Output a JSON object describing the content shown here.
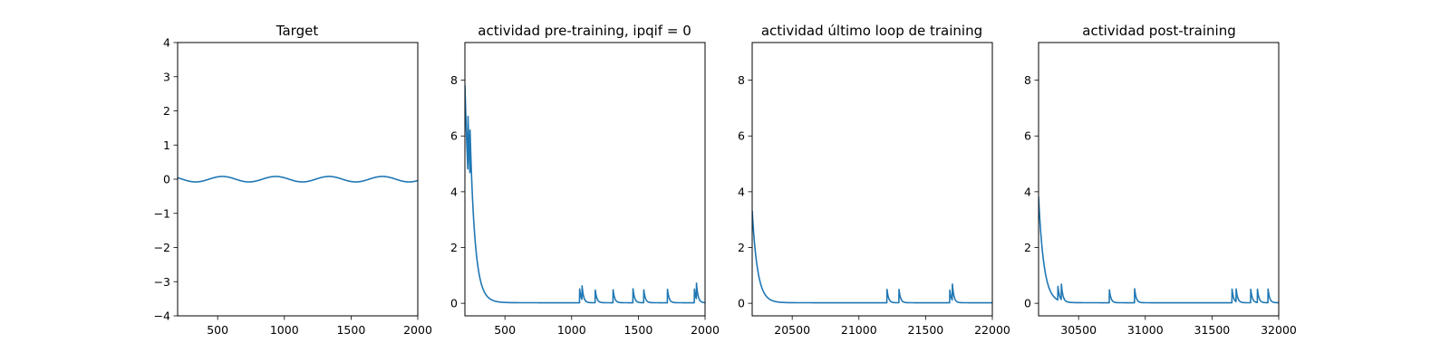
{
  "colors": {
    "series": "#1f77b4",
    "axes": "#000000",
    "background": "#ffffff"
  },
  "chart_data": [
    {
      "type": "line",
      "title": "Target",
      "xlabel": "",
      "ylabel": "",
      "xlim": [
        200,
        2000
      ],
      "ylim": [
        -4,
        4
      ],
      "xticks": [
        500,
        1000,
        1500,
        2000
      ],
      "yticks": [
        -4,
        -3,
        -2,
        -1,
        0,
        1,
        2,
        3,
        4
      ],
      "grid": false,
      "series": [
        {
          "sinusoid": {
            "amplitude": 0.08,
            "period": 400,
            "peak_at": 535
          }
        }
      ]
    },
    {
      "type": "line",
      "title": "actividad pre-training, ipqif = 0",
      "xlabel": "",
      "ylabel": "",
      "xlim": [
        200,
        2000
      ],
      "ylim": [
        -0.45,
        9.35
      ],
      "xticks": [
        500,
        1000,
        1500,
        2000
      ],
      "yticks": [
        0,
        2,
        4,
        6,
        8
      ],
      "grid": false,
      "series": [
        {
          "baseline": 0.02,
          "spikes": [
            {
              "x": 200,
              "height": 7.8,
              "decay": 45
            },
            {
              "x": 222,
              "height": 2.1,
              "decay": 30
            },
            {
              "x": 238,
              "height": 1.7,
              "decay": 30
            },
            {
              "x": 1060,
              "height": 0.5,
              "decay": 12
            },
            {
              "x": 1078,
              "height": 0.5,
              "decay": 12
            },
            {
              "x": 1176,
              "height": 0.5,
              "decay": 12
            },
            {
              "x": 1310,
              "height": 0.5,
              "decay": 12
            },
            {
              "x": 1460,
              "height": 0.5,
              "decay": 12
            },
            {
              "x": 1540,
              "height": 0.5,
              "decay": 12
            },
            {
              "x": 1718,
              "height": 0.5,
              "decay": 12
            },
            {
              "x": 1920,
              "height": 0.5,
              "decay": 12
            },
            {
              "x": 1935,
              "height": 0.6,
              "decay": 12
            }
          ]
        }
      ]
    },
    {
      "type": "line",
      "title": "actividad último loop de training",
      "xlabel": "",
      "ylabel": "",
      "xlim": [
        20200,
        22000
      ],
      "ylim": [
        -0.45,
        9.35
      ],
      "xticks": [
        20500,
        21000,
        21500,
        22000
      ],
      "yticks": [
        0,
        2,
        4,
        6,
        8
      ],
      "grid": false,
      "series": [
        {
          "baseline": 0.02,
          "spikes": [
            {
              "x": 20200,
              "height": 3.3,
              "decay": 40
            },
            {
              "x": 21210,
              "height": 0.5,
              "decay": 12
            },
            {
              "x": 21300,
              "height": 0.5,
              "decay": 12
            },
            {
              "x": 21680,
              "height": 0.5,
              "decay": 12
            },
            {
              "x": 21700,
              "height": 0.6,
              "decay": 12
            }
          ]
        }
      ]
    },
    {
      "type": "line",
      "title": "actividad post-training",
      "xlabel": "",
      "ylabel": "",
      "xlim": [
        30200,
        32000
      ],
      "ylim": [
        -0.45,
        9.35
      ],
      "xticks": [
        30500,
        31000,
        31500,
        32000
      ],
      "yticks": [
        0,
        2,
        4,
        6,
        8
      ],
      "grid": false,
      "series": [
        {
          "baseline": 0.02,
          "spikes": [
            {
              "x": 30200,
              "height": 3.8,
              "decay": 40
            },
            {
              "x": 30345,
              "height": 0.5,
              "decay": 12
            },
            {
              "x": 30370,
              "height": 0.6,
              "decay": 12
            },
            {
              "x": 30730,
              "height": 0.5,
              "decay": 12
            },
            {
              "x": 30920,
              "height": 0.5,
              "decay": 12
            },
            {
              "x": 31650,
              "height": 0.5,
              "decay": 12
            },
            {
              "x": 31680,
              "height": 0.5,
              "decay": 12
            },
            {
              "x": 31790,
              "height": 0.5,
              "decay": 12
            },
            {
              "x": 31840,
              "height": 0.5,
              "decay": 12
            },
            {
              "x": 31920,
              "height": 0.5,
              "decay": 12
            }
          ]
        }
      ]
    }
  ]
}
